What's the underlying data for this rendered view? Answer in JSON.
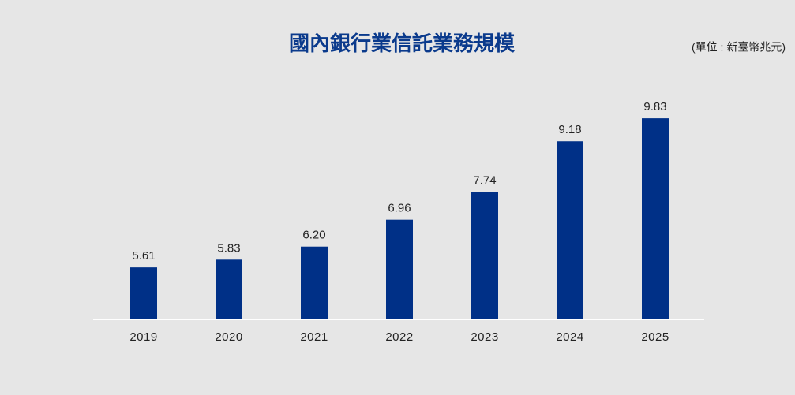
{
  "chart_data": {
    "type": "bar",
    "title": "國內銀行業信託業務規模",
    "subtitle": "(單位 : 新臺幣兆元)",
    "categories": [
      "2019",
      "2020",
      "2021",
      "2022",
      "2023",
      "2024",
      "2025"
    ],
    "values": [
      5.61,
      5.83,
      6.2,
      6.96,
      7.74,
      9.18,
      9.83
    ],
    "value_labels": [
      "5.61",
      "5.83",
      "6.20",
      "6.96",
      "7.74",
      "9.18",
      "9.83"
    ],
    "color": "#003087",
    "ylim": [
      4.14,
      10.0
    ]
  }
}
